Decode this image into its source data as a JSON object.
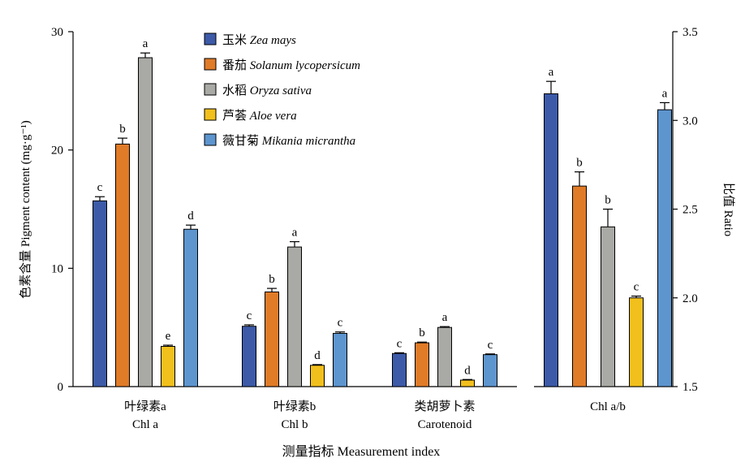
{
  "chart_data": {
    "type": "bar",
    "xlabel": "测量指标 Measurement index",
    "ylabel_left": "色素含量 Pigment content (mg·g⁻¹)",
    "ylabel_right": "比值 Ratio",
    "left_axis": {
      "ylim": [
        0,
        30
      ],
      "ticks": [
        "0",
        "10",
        "20",
        "30"
      ]
    },
    "right_axis": {
      "ylim": [
        1.5,
        3.5
      ],
      "ticks": [
        "1.5",
        "2.0",
        "2.5",
        "3.0",
        "3.5"
      ]
    },
    "legend_position": "top-center",
    "series": [
      {
        "cn": "玉米",
        "latin": "Zea mays",
        "color": "#3c5aa8"
      },
      {
        "cn": "番茄",
        "latin": "Solanum lycopersicum",
        "color": "#e07b28"
      },
      {
        "cn": "水稻",
        "latin": "Oryza sativa",
        "color": "#a9a9a5"
      },
      {
        "cn": "芦荟",
        "latin": "Aloe vera",
        "color": "#f2c01d"
      },
      {
        "cn": "薇甘菊",
        "latin": "Mikania micrantha",
        "color": "#5d95cf"
      }
    ],
    "left_groups": [
      {
        "cn": "叶绿素a",
        "en": "Chl a",
        "values": [
          15.7,
          20.5,
          27.8,
          3.4,
          13.3
        ],
        "errors": [
          0.35,
          0.5,
          0.4,
          0.1,
          0.35
        ],
        "letters": [
          "c",
          "b",
          "a",
          "e",
          "d"
        ]
      },
      {
        "cn": "叶绿素b",
        "en": "Chl b",
        "values": [
          5.1,
          8.0,
          11.8,
          1.8,
          4.5
        ],
        "errors": [
          0.12,
          0.3,
          0.45,
          0.06,
          0.12
        ],
        "letters": [
          "c",
          "b",
          "a",
          "d",
          "c"
        ]
      },
      {
        "cn": "类胡萝卜素",
        "en": "Carotenoid",
        "values": [
          2.8,
          3.7,
          5.0,
          0.55,
          2.7
        ],
        "errors": [
          0.06,
          0.06,
          0.07,
          0.05,
          0.06
        ],
        "letters": [
          "c",
          "b",
          "a",
          "d",
          "c"
        ]
      }
    ],
    "right_group": {
      "en": "Chl a/b",
      "values": [
        3.15,
        2.63,
        2.4,
        2.0,
        3.06
      ],
      "errors": [
        0.07,
        0.08,
        0.1,
        0.01,
        0.04
      ],
      "letters": [
        "a",
        "b",
        "b",
        "c",
        "a"
      ]
    }
  }
}
